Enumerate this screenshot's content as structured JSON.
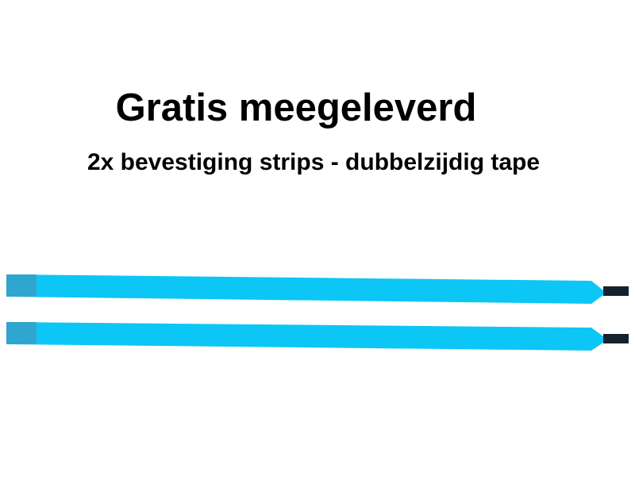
{
  "title": "Gratis meegeleverd",
  "subtitle": "2x bevestiging strips - dubbelzijdig tape",
  "strips": {
    "count": 2,
    "colors": {
      "tape": "#0cc4f4",
      "end_tab": "#2aa0c8",
      "pull_tab": "#14202a"
    }
  }
}
